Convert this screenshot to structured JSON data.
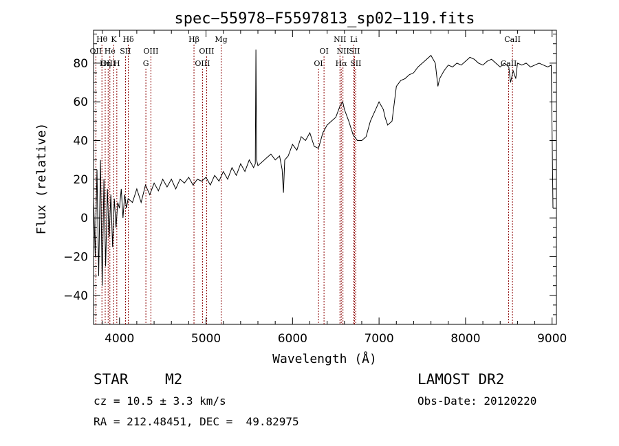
{
  "chart_data": {
    "type": "line",
    "title": "spec−55978−F5597813_sp02−119.fits",
    "xlabel": "Wavelength (Å)",
    "ylabel": "Flux (relative)",
    "xlim": [
      3700,
      9050
    ],
    "ylim": [
      -55,
      97
    ],
    "xticks": [
      4000,
      5000,
      6000,
      7000,
      8000,
      9000
    ],
    "yticks": [
      -40,
      -20,
      0,
      20,
      40,
      60,
      80
    ],
    "series": [
      {
        "x": [
          3700,
          3720,
          3740,
          3760,
          3780,
          3800,
          3820,
          3840,
          3860,
          3880,
          3900,
          3920,
          3940,
          3960,
          3980,
          4000,
          4020,
          4040,
          4060,
          4080,
          4100,
          4150,
          4200,
          4250,
          4300,
          4350,
          4400,
          4450,
          4500,
          4550,
          4600,
          4650,
          4700,
          4750,
          4800,
          4850,
          4900,
          4950,
          5000,
          5050,
          5100,
          5150,
          5200,
          5250,
          5300,
          5350,
          5400,
          5450,
          5500,
          5550,
          5570,
          5577,
          5585,
          5600,
          5650,
          5700,
          5750,
          5800,
          5850,
          5880,
          5895,
          5910,
          5950,
          6000,
          6050,
          6100,
          6150,
          6200,
          6250,
          6300,
          6350,
          6400,
          6450,
          6500,
          6550,
          6580,
          6600,
          6650,
          6700,
          6750,
          6800,
          6850,
          6900,
          6950,
          7000,
          7050,
          7070,
          7100,
          7150,
          7200,
          7250,
          7300,
          7350,
          7400,
          7450,
          7500,
          7550,
          7600,
          7650,
          7680,
          7700,
          7750,
          7800,
          7850,
          7900,
          7950,
          8000,
          8050,
          8100,
          8150,
          8200,
          8250,
          8300,
          8350,
          8400,
          8450,
          8500,
          8520,
          8550,
          8580,
          8600,
          8650,
          8700,
          8750,
          8800,
          8850,
          8900,
          8950,
          8990,
          9000,
          9010
        ],
        "y": [
          10,
          -20,
          25,
          -30,
          30,
          -35,
          20,
          -25,
          15,
          -10,
          12,
          -15,
          10,
          -5,
          8,
          5,
          15,
          0,
          12,
          5,
          10,
          8,
          15,
          8,
          17,
          12,
          18,
          14,
          20,
          16,
          20,
          15,
          20,
          18,
          21,
          17,
          20,
          19,
          21,
          17,
          22,
          19,
          24,
          20,
          26,
          22,
          28,
          24,
          30,
          26,
          28,
          87,
          30,
          27,
          29,
          31,
          33,
          30,
          32,
          25,
          13,
          30,
          32,
          38,
          35,
          42,
          40,
          44,
          37,
          36,
          44,
          48,
          50,
          52,
          58,
          60,
          56,
          50,
          43,
          40,
          40,
          42,
          50,
          55,
          60,
          56,
          52,
          48,
          50,
          68,
          71,
          72,
          74,
          75,
          78,
          80,
          82,
          84,
          80,
          68,
          72,
          76,
          79,
          78,
          80,
          79,
          81,
          83,
          82,
          80,
          79,
          81,
          82,
          80,
          78,
          80,
          78,
          70,
          76,
          72,
          80,
          79,
          80,
          78,
          79,
          80,
          79,
          78,
          79,
          45,
          5
        ]
      }
    ],
    "emission_lines": [
      {
        "label": "Hθ",
        "x": 3797,
        "row": 0
      },
      {
        "label": "OII",
        "x": 3727,
        "row": 1
      },
      {
        "label": "OIII",
        "x": 3869,
        "row": 2
      },
      {
        "label": "He",
        "x": 3889,
        "row": 1
      },
      {
        "label": "Hη",
        "x": 3835,
        "row": 2
      },
      {
        "label": "K",
        "x": 3934,
        "row": 0
      },
      {
        "label": "SII",
        "x": 4069,
        "row": 1
      },
      {
        "label": "H",
        "x": 3969,
        "row": 2
      },
      {
        "label": "Hδ",
        "x": 4102,
        "row": 0
      },
      {
        "label": "OIII",
        "x": 4363,
        "row": 1
      },
      {
        "label": "G",
        "x": 4305,
        "row": 2
      },
      {
        "label": "Hβ",
        "x": 4861,
        "row": 0
      },
      {
        "label": "OIII",
        "x": 5007,
        "row": 1
      },
      {
        "label": "OIII",
        "x": 4959,
        "row": 2
      },
      {
        "label": "Mg",
        "x": 5175,
        "row": 0
      },
      {
        "label": "OI",
        "x": 6364,
        "row": 1
      },
      {
        "label": "OI",
        "x": 6300,
        "row": 2
      },
      {
        "label": "NII",
        "x": 6548,
        "row": 0
      },
      {
        "label": "NII",
        "x": 6583,
        "row": 1
      },
      {
        "label": "Hα",
        "x": 6563,
        "row": 2
      },
      {
        "label": "Li",
        "x": 6708,
        "row": 0
      },
      {
        "label": "SII",
        "x": 6716,
        "row": 1
      },
      {
        "label": "SII",
        "x": 6731,
        "row": 2
      },
      {
        "label": "CaII",
        "x": 8542,
        "row": 0
      },
      {
        "label": "CaII",
        "x": 8498,
        "row": 2
      }
    ],
    "grid": false,
    "line_color": "#000000",
    "marker_color": "#8b0000"
  },
  "info": {
    "class": "STAR",
    "subclass": "M2",
    "survey": "LAMOST DR2",
    "cz": "cz = 10.5 ± 3.3 km/s",
    "obs_date": "Obs-Date: 20120220",
    "radec": "RA = 212.48451, DEC =  49.82975"
  }
}
